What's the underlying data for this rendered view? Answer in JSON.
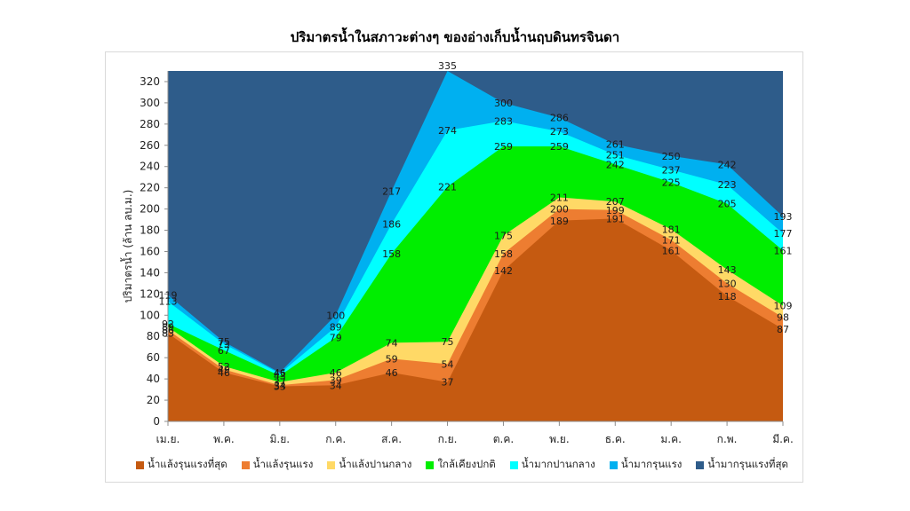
{
  "chart_data": {
    "type": "area",
    "title": "ปริมาตรน้ำในสภาวะต่างๆ ของอ่างเก็บน้ำนฤบดินทรจินดา",
    "ylabel": "ปริมาตรน้ำ (ล้าน ลบ.ม.)",
    "xlabel": "",
    "ylim": [
      0,
      330
    ],
    "yticks": [
      0,
      20,
      40,
      60,
      80,
      100,
      120,
      140,
      160,
      180,
      200,
      220,
      240,
      260,
      280,
      300,
      320
    ],
    "categories": [
      "เม.ย.",
      "พ.ค.",
      "มิ.ย.",
      "ก.ค.",
      "ส.ค.",
      "ก.ย.",
      "ต.ค.",
      "พ.ย.",
      "ธ.ค.",
      "ม.ค.",
      "ก.พ.",
      "มี.ค."
    ],
    "grid": false,
    "legend_position": "bottom",
    "series": [
      {
        "name": "น้ำแล้งรุนแรงที่สุด",
        "color": "#c55a11",
        "values": [
          83,
          46,
          33,
          34,
          46,
          37,
          142,
          189,
          191,
          161,
          118,
          87
        ]
      },
      {
        "name": "น้ำแล้งรุนแรง",
        "color": "#ed7d31",
        "values": [
          86,
          49,
          34,
          39,
          59,
          54,
          158,
          200,
          199,
          171,
          130,
          98
        ]
      },
      {
        "name": "น้ำแล้งปานกลาง",
        "color": "#ffd966",
        "values": [
          89,
          52,
          37,
          46,
          74,
          75,
          175,
          211,
          207,
          181,
          143,
          109
        ]
      },
      {
        "name": "ใกล้เคียงปกติ",
        "color": "#00ee00",
        "values": [
          92,
          67,
          43,
          79,
          158,
          221,
          259,
          259,
          242,
          225,
          205,
          161
        ]
      },
      {
        "name": "น้ำมากปานกลาง",
        "color": "#00ffff",
        "values": [
          113,
          73,
          45,
          89,
          186,
          274,
          283,
          273,
          251,
          237,
          223,
          177
        ]
      },
      {
        "name": "น้ำมากรุนแรง",
        "color": "#00b0f0",
        "values": [
          119,
          75,
          46,
          100,
          217,
          335,
          300,
          286,
          261,
          250,
          242,
          193
        ]
      },
      {
        "name": "น้ำมากรุนแรงที่สุด",
        "color": "#2e5c8a",
        "values": [
          null,
          null,
          null,
          null,
          null,
          null,
          null,
          null,
          null,
          null,
          null,
          null
        ]
      }
    ]
  }
}
